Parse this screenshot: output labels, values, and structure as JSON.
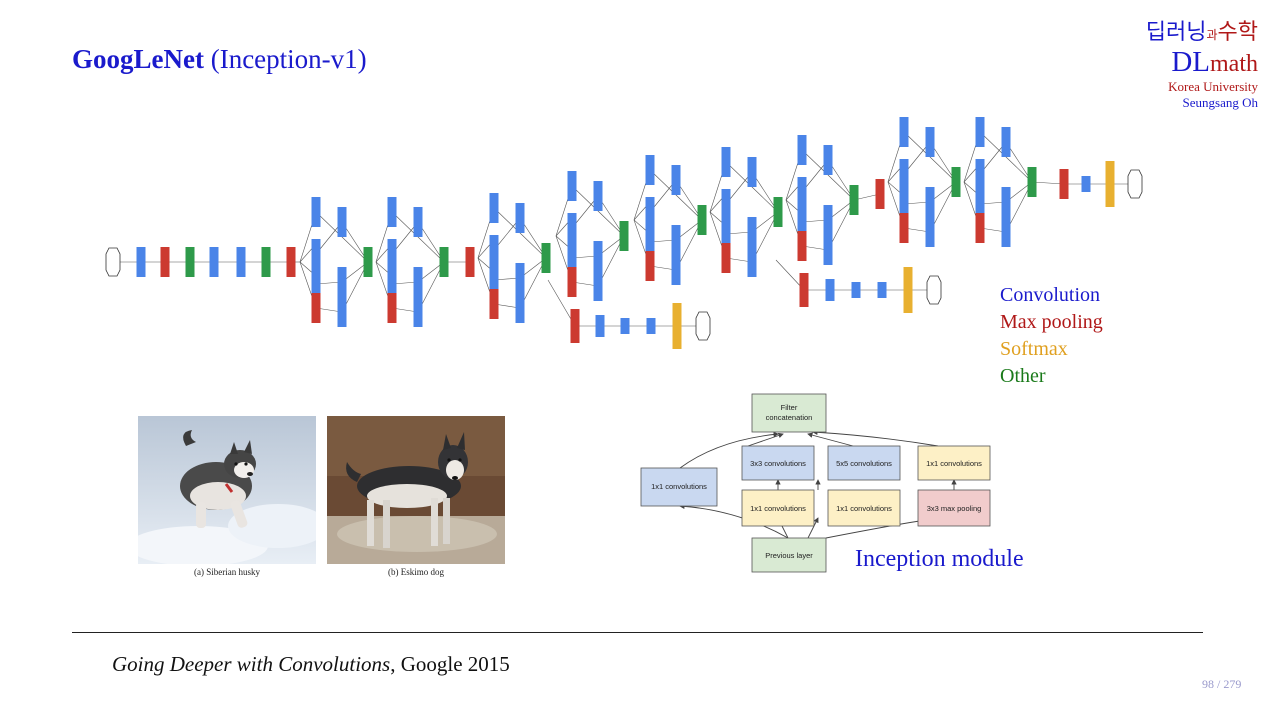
{
  "slide": {
    "title_bold": "GoogLeNet",
    "title_rest": " (Inception-v1)",
    "page_current": "98",
    "page_sep": " / ",
    "page_total": "279"
  },
  "logo": {
    "korean_left": "딥러닝",
    "korean_small": "과",
    "korean_right": "수학",
    "dl": "DL",
    "math": "math",
    "university": "Korea University",
    "author": "Seungsang Oh"
  },
  "legend": {
    "items": [
      {
        "label": "Convolution",
        "color": "#1a1acc"
      },
      {
        "label": "Max pooling",
        "color": "#b01818"
      },
      {
        "label": "Softmax",
        "color": "#e0a020"
      },
      {
        "label": "Other",
        "color": "#1a7a1a"
      }
    ]
  },
  "colors": {
    "conv": "#4a84e8",
    "pool": "#cc3a30",
    "softmax": "#e8b030",
    "other": "#2e9a4a",
    "node_outline": "#333333"
  },
  "photos": {
    "left_caption": "(a) Siberian husky",
    "right_caption": "(b) Eskimo dog"
  },
  "module": {
    "filter_concat": [
      "Filter",
      "concatenation"
    ],
    "conv1x1_left": "1x1 convolutions",
    "conv3x3": "3x3 convolutions",
    "conv5x5": "5x5 convolutions",
    "conv1x1_right": "1x1 convolutions",
    "reduce1": "1x1 convolutions",
    "reduce2": "1x1 convolutions",
    "maxpool": "3x3 max pooling",
    "previous": "Previous layer",
    "label": "Inception module"
  },
  "citation": {
    "title": "Going Deeper with Convolutions",
    "rest": ",  Google 2015"
  }
}
